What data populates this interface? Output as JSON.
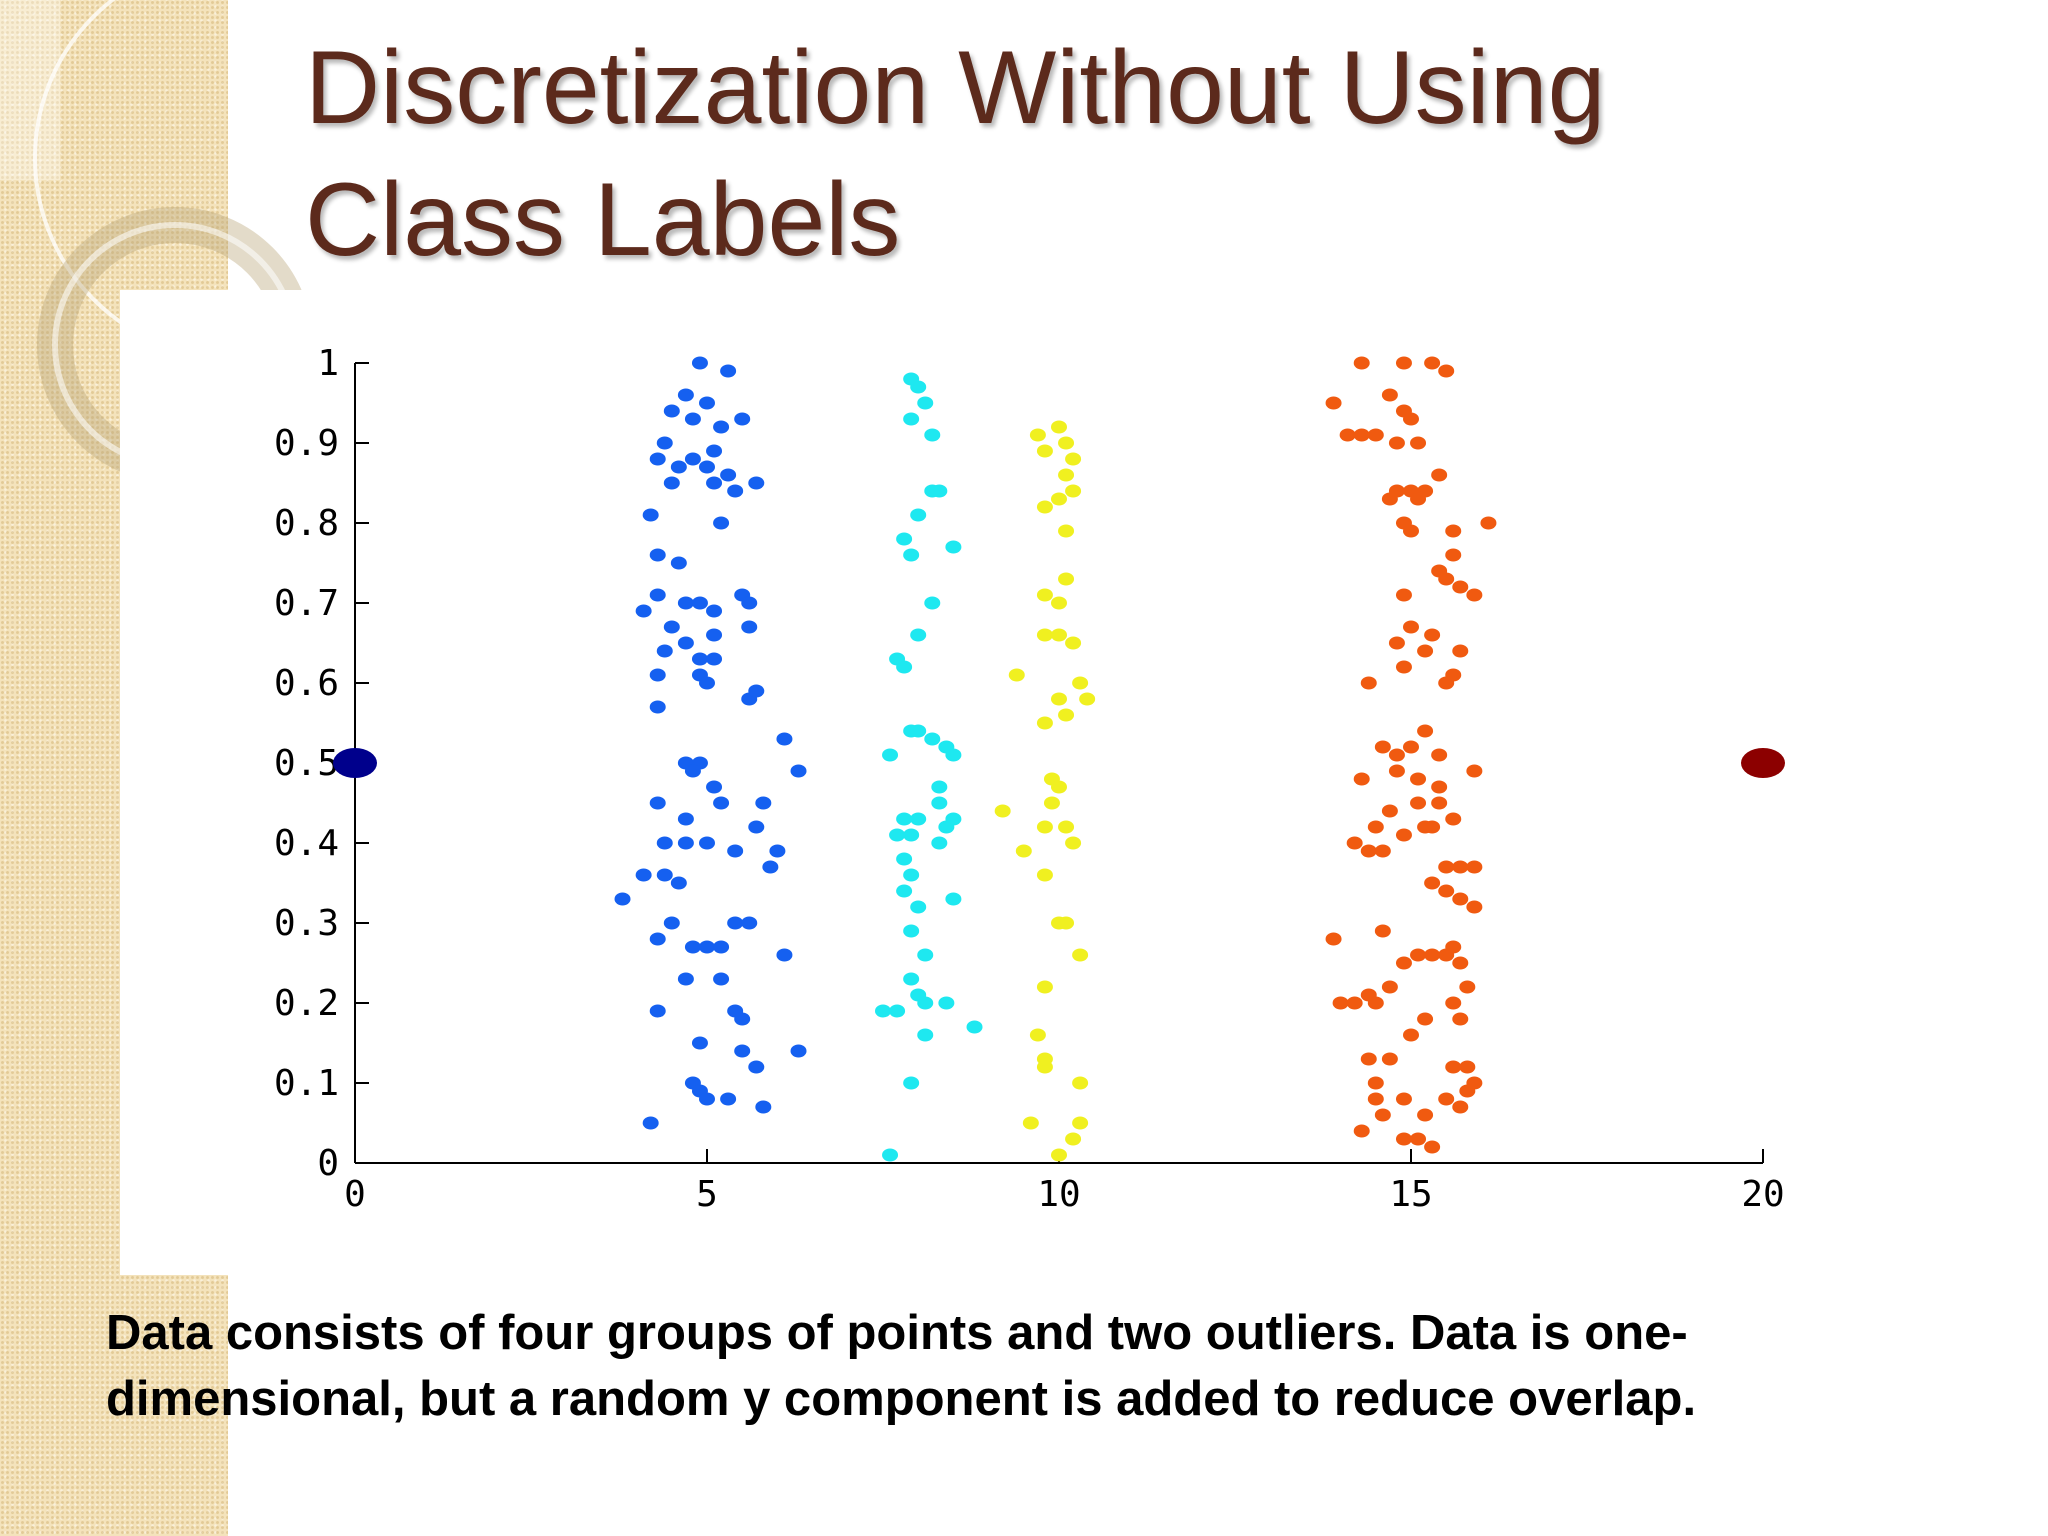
{
  "slide": {
    "title_line1": "Discretization Without Using",
    "title_line2": "Class Labels",
    "caption_line1": "Data consists of four groups of points and two outliers. Data is one-",
    "caption_line2": "dimensional, but a random y component is added to reduce overlap.",
    "accent_color": "#5c2a1c",
    "sidebar_color": "#f4e3bc"
  },
  "chart_data": {
    "type": "scatter",
    "title": "",
    "xlabel": "",
    "ylabel": "",
    "xlim": [
      0,
      20
    ],
    "ylim": [
      0,
      1
    ],
    "xticks": [
      0,
      5,
      10,
      15,
      20
    ],
    "yticks": [
      0,
      0.1,
      0.2,
      0.3,
      0.4,
      0.5,
      0.6,
      0.7,
      0.8,
      0.9,
      1
    ],
    "grid": false,
    "legend": "none",
    "series": [
      {
        "color": "#1560f0",
        "marker": "point",
        "points": [
          [
            4.9,
            1.0
          ],
          [
            5.3,
            0.99
          ],
          [
            4.7,
            0.96
          ],
          [
            5.0,
            0.95
          ],
          [
            4.5,
            0.94
          ],
          [
            4.8,
            0.93
          ],
          [
            5.5,
            0.93
          ],
          [
            5.2,
            0.92
          ],
          [
            4.4,
            0.9
          ],
          [
            5.1,
            0.89
          ],
          [
            4.3,
            0.88
          ],
          [
            4.8,
            0.88
          ],
          [
            4.6,
            0.87
          ],
          [
            5.0,
            0.87
          ],
          [
            5.3,
            0.86
          ],
          [
            4.5,
            0.85
          ],
          [
            5.1,
            0.85
          ],
          [
            5.4,
            0.84
          ],
          [
            5.7,
            0.85
          ],
          [
            4.2,
            0.81
          ],
          [
            5.2,
            0.8
          ],
          [
            4.3,
            0.76
          ],
          [
            4.6,
            0.75
          ],
          [
            4.3,
            0.71
          ],
          [
            5.5,
            0.71
          ],
          [
            5.6,
            0.7
          ],
          [
            4.1,
            0.69
          ],
          [
            4.7,
            0.7
          ],
          [
            4.9,
            0.7
          ],
          [
            5.1,
            0.69
          ],
          [
            4.5,
            0.67
          ],
          [
            5.6,
            0.67
          ],
          [
            4.7,
            0.65
          ],
          [
            5.1,
            0.66
          ],
          [
            4.4,
            0.64
          ],
          [
            4.9,
            0.63
          ],
          [
            5.1,
            0.63
          ],
          [
            4.3,
            0.61
          ],
          [
            4.9,
            0.61
          ],
          [
            5.6,
            0.58
          ],
          [
            5.7,
            0.59
          ],
          [
            4.3,
            0.57
          ],
          [
            5.0,
            0.6
          ],
          [
            6.1,
            0.53
          ],
          [
            4.7,
            0.5
          ],
          [
            4.9,
            0.5
          ],
          [
            4.8,
            0.49
          ],
          [
            6.3,
            0.49
          ],
          [
            5.1,
            0.47
          ],
          [
            4.3,
            0.45
          ],
          [
            5.2,
            0.45
          ],
          [
            5.8,
            0.45
          ],
          [
            4.7,
            0.43
          ],
          [
            6.0,
            0.39
          ],
          [
            4.4,
            0.4
          ],
          [
            4.7,
            0.4
          ],
          [
            5.0,
            0.4
          ],
          [
            5.4,
            0.39
          ],
          [
            5.7,
            0.42
          ],
          [
            4.1,
            0.36
          ],
          [
            4.4,
            0.36
          ],
          [
            4.6,
            0.35
          ],
          [
            5.9,
            0.37
          ],
          [
            3.8,
            0.33
          ],
          [
            4.5,
            0.3
          ],
          [
            5.4,
            0.3
          ],
          [
            5.6,
            0.3
          ],
          [
            4.8,
            0.27
          ],
          [
            5.0,
            0.27
          ],
          [
            5.2,
            0.27
          ],
          [
            6.1,
            0.26
          ],
          [
            4.3,
            0.28
          ],
          [
            4.7,
            0.23
          ],
          [
            5.2,
            0.23
          ],
          [
            4.3,
            0.19
          ],
          [
            5.4,
            0.19
          ],
          [
            5.5,
            0.18
          ],
          [
            4.9,
            0.15
          ],
          [
            5.5,
            0.14
          ],
          [
            6.3,
            0.14
          ],
          [
            5.7,
            0.12
          ],
          [
            4.8,
            0.1
          ],
          [
            4.9,
            0.09
          ],
          [
            5.3,
            0.08
          ],
          [
            5.0,
            0.08
          ],
          [
            5.8,
            0.07
          ],
          [
            4.2,
            0.05
          ]
        ]
      },
      {
        "color": "#1ee8f0",
        "marker": "point",
        "points": [
          [
            7.9,
            0.98
          ],
          [
            8.0,
            0.97
          ],
          [
            8.1,
            0.95
          ],
          [
            7.9,
            0.93
          ],
          [
            8.2,
            0.91
          ],
          [
            8.3,
            0.84
          ],
          [
            8.2,
            0.84
          ],
          [
            8.0,
            0.81
          ],
          [
            7.8,
            0.78
          ],
          [
            7.9,
            0.76
          ],
          [
            8.5,
            0.77
          ],
          [
            8.2,
            0.7
          ],
          [
            8.0,
            0.66
          ],
          [
            7.7,
            0.63
          ],
          [
            7.8,
            0.62
          ],
          [
            7.9,
            0.54
          ],
          [
            8.0,
            0.54
          ],
          [
            8.2,
            0.53
          ],
          [
            7.6,
            0.51
          ],
          [
            8.4,
            0.52
          ],
          [
            8.5,
            0.51
          ],
          [
            8.3,
            0.47
          ],
          [
            8.3,
            0.45
          ],
          [
            7.8,
            0.43
          ],
          [
            8.0,
            0.43
          ],
          [
            8.4,
            0.42
          ],
          [
            8.5,
            0.43
          ],
          [
            7.7,
            0.41
          ],
          [
            7.9,
            0.41
          ],
          [
            8.3,
            0.4
          ],
          [
            7.8,
            0.38
          ],
          [
            7.9,
            0.36
          ],
          [
            7.8,
            0.34
          ],
          [
            8.5,
            0.33
          ],
          [
            8.0,
            0.32
          ],
          [
            7.9,
            0.29
          ],
          [
            8.1,
            0.26
          ],
          [
            7.9,
            0.23
          ],
          [
            8.0,
            0.21
          ],
          [
            8.4,
            0.2
          ],
          [
            7.5,
            0.19
          ],
          [
            7.7,
            0.19
          ],
          [
            8.1,
            0.2
          ],
          [
            8.8,
            0.17
          ],
          [
            8.1,
            0.16
          ],
          [
            7.9,
            0.1
          ],
          [
            7.6,
            0.01
          ]
        ]
      },
      {
        "color": "#f0f020",
        "marker": "point",
        "points": [
          [
            9.7,
            0.91
          ],
          [
            10.0,
            0.92
          ],
          [
            10.1,
            0.9
          ],
          [
            9.8,
            0.89
          ],
          [
            10.2,
            0.88
          ],
          [
            10.1,
            0.86
          ],
          [
            10.2,
            0.84
          ],
          [
            9.8,
            0.82
          ],
          [
            10.0,
            0.83
          ],
          [
            10.1,
            0.79
          ],
          [
            10.1,
            0.73
          ],
          [
            9.8,
            0.71
          ],
          [
            10.0,
            0.7
          ],
          [
            9.8,
            0.66
          ],
          [
            10.0,
            0.66
          ],
          [
            10.2,
            0.65
          ],
          [
            9.4,
            0.61
          ],
          [
            10.3,
            0.6
          ],
          [
            10.4,
            0.58
          ],
          [
            10.0,
            0.58
          ],
          [
            9.8,
            0.55
          ],
          [
            10.1,
            0.56
          ],
          [
            9.9,
            0.48
          ],
          [
            10.0,
            0.47
          ],
          [
            9.9,
            0.45
          ],
          [
            10.1,
            0.42
          ],
          [
            9.2,
            0.44
          ],
          [
            9.8,
            0.42
          ],
          [
            9.5,
            0.39
          ],
          [
            10.2,
            0.4
          ],
          [
            9.8,
            0.36
          ],
          [
            10.0,
            0.3
          ],
          [
            10.1,
            0.3
          ],
          [
            10.3,
            0.26
          ],
          [
            9.8,
            0.22
          ],
          [
            9.7,
            0.16
          ],
          [
            9.8,
            0.13
          ],
          [
            9.8,
            0.12
          ],
          [
            10.3,
            0.1
          ],
          [
            9.6,
            0.05
          ],
          [
            10.3,
            0.05
          ],
          [
            10.2,
            0.03
          ],
          [
            10.0,
            0.01
          ]
        ]
      },
      {
        "color": "#f05a10",
        "marker": "point",
        "points": [
          [
            14.3,
            1.0
          ],
          [
            14.9,
            1.0
          ],
          [
            15.5,
            0.99
          ],
          [
            15.3,
            1.0
          ],
          [
            13.9,
            0.95
          ],
          [
            14.7,
            0.96
          ],
          [
            14.9,
            0.94
          ],
          [
            15.0,
            0.93
          ],
          [
            14.1,
            0.91
          ],
          [
            14.3,
            0.91
          ],
          [
            14.5,
            0.91
          ],
          [
            14.8,
            0.9
          ],
          [
            15.1,
            0.9
          ],
          [
            15.4,
            0.86
          ],
          [
            14.8,
            0.84
          ],
          [
            15.0,
            0.84
          ],
          [
            14.7,
            0.83
          ],
          [
            15.1,
            0.83
          ],
          [
            15.2,
            0.84
          ],
          [
            14.9,
            0.8
          ],
          [
            15.0,
            0.79
          ],
          [
            15.6,
            0.79
          ],
          [
            16.1,
            0.8
          ],
          [
            15.6,
            0.76
          ],
          [
            15.4,
            0.74
          ],
          [
            15.5,
            0.73
          ],
          [
            15.7,
            0.72
          ],
          [
            15.9,
            0.71
          ],
          [
            14.9,
            0.71
          ],
          [
            15.0,
            0.67
          ],
          [
            15.3,
            0.66
          ],
          [
            14.8,
            0.65
          ],
          [
            15.2,
            0.64
          ],
          [
            15.7,
            0.64
          ],
          [
            14.9,
            0.62
          ],
          [
            15.5,
            0.6
          ],
          [
            14.4,
            0.6
          ],
          [
            15.6,
            0.61
          ],
          [
            15.2,
            0.54
          ],
          [
            14.6,
            0.52
          ],
          [
            15.0,
            0.52
          ],
          [
            14.8,
            0.51
          ],
          [
            15.4,
            0.51
          ],
          [
            14.8,
            0.49
          ],
          [
            15.9,
            0.49
          ],
          [
            15.1,
            0.48
          ],
          [
            15.4,
            0.47
          ],
          [
            14.3,
            0.48
          ],
          [
            15.4,
            0.45
          ],
          [
            15.1,
            0.45
          ],
          [
            14.7,
            0.44
          ],
          [
            15.6,
            0.43
          ],
          [
            14.5,
            0.42
          ],
          [
            15.3,
            0.42
          ],
          [
            14.9,
            0.41
          ],
          [
            15.2,
            0.42
          ],
          [
            14.2,
            0.4
          ],
          [
            14.4,
            0.39
          ],
          [
            14.6,
            0.39
          ],
          [
            15.5,
            0.37
          ],
          [
            15.7,
            0.37
          ],
          [
            15.9,
            0.37
          ],
          [
            15.3,
            0.35
          ],
          [
            15.5,
            0.34
          ],
          [
            15.7,
            0.33
          ],
          [
            15.9,
            0.32
          ],
          [
            13.9,
            0.28
          ],
          [
            14.6,
            0.29
          ],
          [
            15.6,
            0.27
          ],
          [
            15.1,
            0.26
          ],
          [
            15.3,
            0.26
          ],
          [
            14.9,
            0.25
          ],
          [
            15.5,
            0.26
          ],
          [
            15.7,
            0.25
          ],
          [
            14.7,
            0.22
          ],
          [
            15.8,
            0.22
          ],
          [
            14.5,
            0.2
          ],
          [
            14.0,
            0.2
          ],
          [
            14.2,
            0.2
          ],
          [
            14.4,
            0.21
          ],
          [
            15.6,
            0.2
          ],
          [
            15.2,
            0.18
          ],
          [
            15.7,
            0.18
          ],
          [
            15.0,
            0.16
          ],
          [
            14.4,
            0.13
          ],
          [
            14.7,
            0.13
          ],
          [
            15.6,
            0.12
          ],
          [
            15.8,
            0.12
          ],
          [
            14.5,
            0.1
          ],
          [
            15.9,
            0.1
          ],
          [
            15.8,
            0.09
          ],
          [
            14.5,
            0.08
          ],
          [
            14.9,
            0.08
          ],
          [
            15.5,
            0.08
          ],
          [
            15.7,
            0.07
          ],
          [
            14.6,
            0.06
          ],
          [
            15.2,
            0.06
          ],
          [
            14.3,
            0.04
          ],
          [
            14.9,
            0.03
          ],
          [
            15.1,
            0.03
          ],
          [
            15.3,
            0.02
          ]
        ]
      },
      {
        "color": "#00008c",
        "marker": "large",
        "points": [
          [
            0,
            0.5
          ]
        ]
      },
      {
        "color": "#8c0000",
        "marker": "large",
        "points": [
          [
            20,
            0.5
          ]
        ]
      }
    ]
  }
}
